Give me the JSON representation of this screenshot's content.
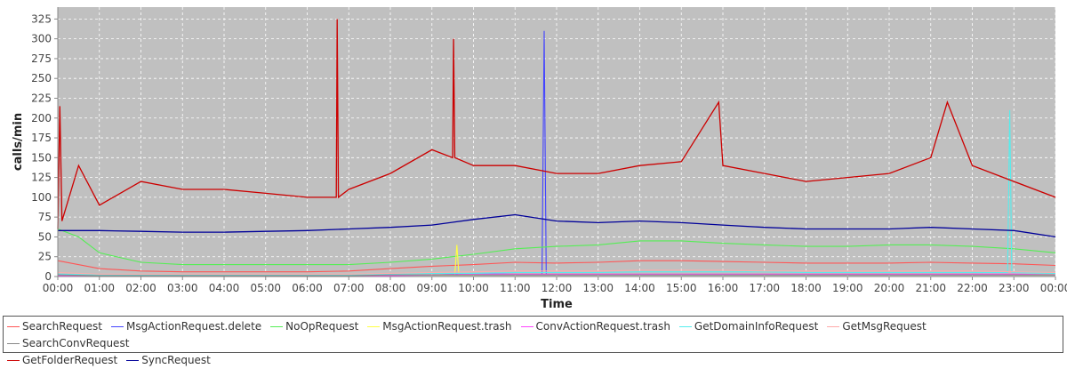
{
  "chart_data": {
    "type": "line",
    "title": "",
    "xlabel": "Time",
    "ylabel": "calls/min",
    "ylim": [
      0,
      340
    ],
    "yticks": [
      0,
      25,
      50,
      75,
      100,
      125,
      150,
      175,
      200,
      225,
      250,
      275,
      300,
      325
    ],
    "xticks": [
      "00:00",
      "01:00",
      "02:00",
      "03:00",
      "04:00",
      "05:00",
      "06:00",
      "07:00",
      "08:00",
      "09:00",
      "10:00",
      "11:00",
      "12:00",
      "13:00",
      "14:00",
      "15:00",
      "16:00",
      "17:00",
      "18:00",
      "19:00",
      "20:00",
      "21:00",
      "22:00",
      "23:00",
      "00:00"
    ],
    "x_unit": "hour of day",
    "grid": true,
    "legend_position": "bottom",
    "plot_background": "#c0c0c0",
    "series": [
      {
        "name": "SearchRequest",
        "color": "#ff5555",
        "x": [
          0,
          1,
          2,
          3,
          4,
          5,
          6,
          7,
          8,
          9,
          10,
          11,
          12,
          13,
          14,
          15,
          16,
          17,
          18,
          19,
          20,
          21,
          22,
          23,
          24
        ],
        "values": [
          20,
          10,
          7,
          6,
          6,
          6,
          6,
          7,
          10,
          13,
          15,
          18,
          17,
          18,
          20,
          20,
          19,
          18,
          17,
          17,
          17,
          18,
          17,
          16,
          14
        ]
      },
      {
        "name": "MsgActionRequest.delete",
        "color": "#4444ff",
        "x": [
          0,
          1,
          2,
          3,
          4,
          5,
          6,
          7,
          8,
          9,
          10,
          11,
          11.65,
          11.7,
          11.75,
          12,
          13,
          14,
          15,
          16,
          17,
          18,
          19,
          20,
          21,
          22,
          23,
          24
        ],
        "values": [
          2,
          1,
          1,
          1,
          1,
          1,
          1,
          1,
          2,
          2,
          3,
          3,
          3,
          310,
          3,
          3,
          3,
          3,
          3,
          3,
          3,
          3,
          3,
          3,
          3,
          3,
          2,
          2
        ]
      },
      {
        "name": "NoOpRequest",
        "color": "#55ee55",
        "x": [
          0,
          0.5,
          1,
          2,
          3,
          4,
          5,
          6,
          7,
          8,
          9,
          10,
          11,
          12,
          13,
          14,
          15,
          16,
          17,
          18,
          19,
          20,
          21,
          22,
          23,
          24
        ],
        "values": [
          60,
          50,
          30,
          18,
          15,
          15,
          15,
          15,
          15,
          18,
          22,
          28,
          35,
          38,
          40,
          45,
          45,
          42,
          40,
          38,
          38,
          40,
          40,
          38,
          35,
          30
        ]
      },
      {
        "name": "MsgActionRequest.trash",
        "color": "#ffff44",
        "x": [
          0,
          1,
          2,
          3,
          4,
          5,
          6,
          7,
          8,
          9,
          9.55,
          9.6,
          9.65,
          10,
          11,
          12,
          13,
          14,
          15,
          16,
          17,
          18,
          19,
          20,
          21,
          22,
          23,
          24
        ],
        "values": [
          2,
          1,
          1,
          1,
          1,
          1,
          1,
          1,
          2,
          2,
          2,
          40,
          2,
          2,
          3,
          3,
          3,
          3,
          3,
          3,
          3,
          3,
          3,
          3,
          3,
          3,
          2,
          2
        ]
      },
      {
        "name": "ConvActionRequest.trash",
        "color": "#ff44ff",
        "x": [
          0,
          1,
          2,
          3,
          4,
          5,
          6,
          7,
          8,
          9,
          10,
          11,
          12,
          13,
          14,
          15,
          16,
          17,
          18,
          19,
          20,
          21,
          22,
          23,
          24
        ],
        "values": [
          1,
          1,
          1,
          1,
          1,
          1,
          1,
          1,
          1,
          2,
          3,
          3,
          3,
          3,
          3,
          3,
          3,
          3,
          3,
          3,
          3,
          3,
          3,
          3,
          2
        ]
      },
      {
        "name": "GetDomainInfoRequest",
        "color": "#55eeee",
        "x": [
          0,
          1,
          2,
          3,
          4,
          5,
          6,
          7,
          8,
          9,
          10,
          11,
          12,
          13,
          14,
          15,
          16,
          17,
          18,
          19,
          20,
          21,
          22,
          22.85,
          22.9,
          22.95,
          23,
          24
        ],
        "values": [
          3,
          2,
          2,
          2,
          2,
          2,
          2,
          2,
          3,
          4,
          4,
          5,
          5,
          5,
          6,
          6,
          6,
          6,
          5,
          5,
          5,
          5,
          5,
          5,
          210,
          5,
          5,
          4
        ]
      },
      {
        "name": "GetMsgRequest",
        "color": "#ffaaaa",
        "x": [
          0,
          1,
          2,
          3,
          4,
          5,
          6,
          7,
          8,
          9,
          10,
          11,
          12,
          13,
          14,
          15,
          16,
          17,
          18,
          19,
          20,
          21,
          22,
          23,
          24
        ],
        "values": [
          5,
          3,
          3,
          3,
          3,
          3,
          3,
          3,
          4,
          5,
          6,
          7,
          7,
          7,
          8,
          8,
          8,
          7,
          7,
          7,
          7,
          7,
          7,
          6,
          5
        ]
      },
      {
        "name": "SearchConvRequest",
        "color": "#888888",
        "x": [
          0,
          1,
          2,
          3,
          4,
          5,
          6,
          7,
          8,
          9,
          10,
          11,
          12,
          13,
          14,
          15,
          16,
          17,
          18,
          19,
          20,
          21,
          22,
          23,
          24
        ],
        "values": [
          2,
          1,
          1,
          1,
          1,
          1,
          1,
          1,
          2,
          2,
          2,
          2,
          2,
          2,
          2,
          2,
          2,
          2,
          2,
          2,
          2,
          2,
          2,
          2,
          2
        ]
      },
      {
        "name": "GetFolderRequest",
        "color": "#cc0000",
        "x": [
          0,
          0.05,
          0.1,
          0.5,
          1,
          2,
          3,
          4,
          5,
          6,
          6.7,
          6.72,
          6.75,
          7,
          8,
          9,
          9.5,
          9.52,
          9.55,
          10,
          11,
          12,
          13,
          14,
          15,
          15.9,
          16,
          17,
          18,
          19,
          20,
          21,
          21.4,
          22,
          23,
          24
        ],
        "values": [
          60,
          215,
          70,
          140,
          90,
          120,
          110,
          110,
          105,
          100,
          100,
          325,
          100,
          110,
          130,
          160,
          150,
          300,
          150,
          140,
          140,
          130,
          130,
          140,
          145,
          220,
          140,
          130,
          120,
          125,
          130,
          150,
          220,
          140,
          120,
          100
        ]
      },
      {
        "name": "SyncRequest",
        "color": "#000099",
        "x": [
          0,
          1,
          2,
          3,
          4,
          5,
          6,
          7,
          8,
          9,
          10,
          11,
          12,
          13,
          14,
          15,
          16,
          17,
          18,
          19,
          20,
          21,
          22,
          23,
          24
        ],
        "values": [
          58,
          58,
          57,
          56,
          56,
          57,
          58,
          60,
          62,
          65,
          72,
          78,
          70,
          68,
          70,
          68,
          65,
          62,
          60,
          60,
          60,
          62,
          60,
          58,
          50
        ]
      }
    ]
  },
  "legend": {
    "rows": [
      [
        "SearchRequest",
        "MsgActionRequest.delete",
        "NoOpRequest",
        "MsgActionRequest.trash",
        "ConvActionRequest.trash",
        "GetDomainInfoRequest",
        "GetMsgRequest",
        "SearchConvRequest"
      ],
      [
        "GetFolderRequest",
        "SyncRequest"
      ]
    ]
  }
}
